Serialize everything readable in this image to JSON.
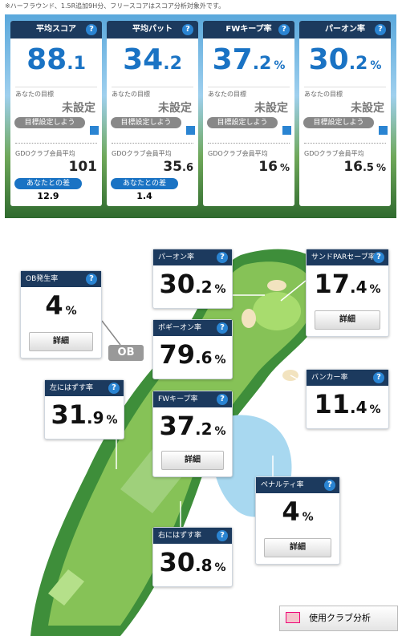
{
  "note": "※ハーフラウンド、1.5R追加9H分、フリースコアはスコア分析対象外です。",
  "help": "?",
  "summary": [
    {
      "title": "平均スコア",
      "value": {
        "int": "88",
        "dec": ".1"
      },
      "goal_label": "あなたの目標",
      "goal_value": "未設定",
      "goal_button": "目標設定しよう",
      "avg_label": "GDOクラブ会員平均",
      "avg": {
        "int": "101"
      },
      "diff_label": "あなたとの差",
      "diff": "12.9"
    },
    {
      "title": "平均パット",
      "value": {
        "int": "34",
        "dec": ".2"
      },
      "goal_label": "あなたの目標",
      "goal_value": "未設定",
      "goal_button": "目標設定しよう",
      "avg_label": "GDOクラブ会員平均",
      "avg": {
        "int": "35",
        "dec": ".6"
      },
      "diff_label": "あなたとの差",
      "diff": "1.4"
    },
    {
      "title": "FWキープ率",
      "value": {
        "int": "37",
        "dec": ".2",
        "unit": "%"
      },
      "goal_label": "あなたの目標",
      "goal_value": "未設定",
      "goal_button": "目標設定しよう",
      "avg_label": "GDOクラブ会員平均",
      "avg": {
        "int": "16",
        "unit": "%"
      }
    },
    {
      "title": "パーオン率",
      "value": {
        "int": "30",
        "dec": ".2",
        "unit": "%"
      },
      "goal_label": "あなたの目標",
      "goal_value": "未設定",
      "goal_button": "目標設定しよう",
      "avg_label": "GDOクラブ会員平均",
      "avg": {
        "int": "16",
        "dec": ".5",
        "unit": "%"
      }
    }
  ],
  "course": [
    {
      "title": "OB発生率",
      "value": {
        "int": "4",
        "unit": "%"
      },
      "button": "詳細"
    },
    {
      "title": "パーオン率",
      "value": {
        "int": "30",
        "dec": ".2",
        "unit": "%"
      }
    },
    {
      "title": "サンドPARセーブ率",
      "value": {
        "int": "17",
        "dec": ".4",
        "unit": "%"
      },
      "button": "詳細"
    },
    {
      "title": "ボギーオン率",
      "value": {
        "int": "79",
        "dec": ".6",
        "unit": "%"
      }
    },
    {
      "title": "左にはずす率",
      "value": {
        "int": "31",
        "dec": ".9",
        "unit": "%"
      }
    },
    {
      "title": "FWキープ率",
      "value": {
        "int": "37",
        "dec": ".2",
        "unit": "%"
      },
      "button": "詳細"
    },
    {
      "title": "バンカー率",
      "value": {
        "int": "11",
        "dec": ".4",
        "unit": "%"
      }
    },
    {
      "title": "ペナルティ率",
      "value": {
        "int": "4",
        "unit": "%"
      },
      "button": "詳細"
    },
    {
      "title": "右にはずす率",
      "value": {
        "int": "30",
        "dec": ".8",
        "unit": "%"
      }
    }
  ],
  "ob_label": "OB",
  "club_button": "使用クラブ分析"
}
